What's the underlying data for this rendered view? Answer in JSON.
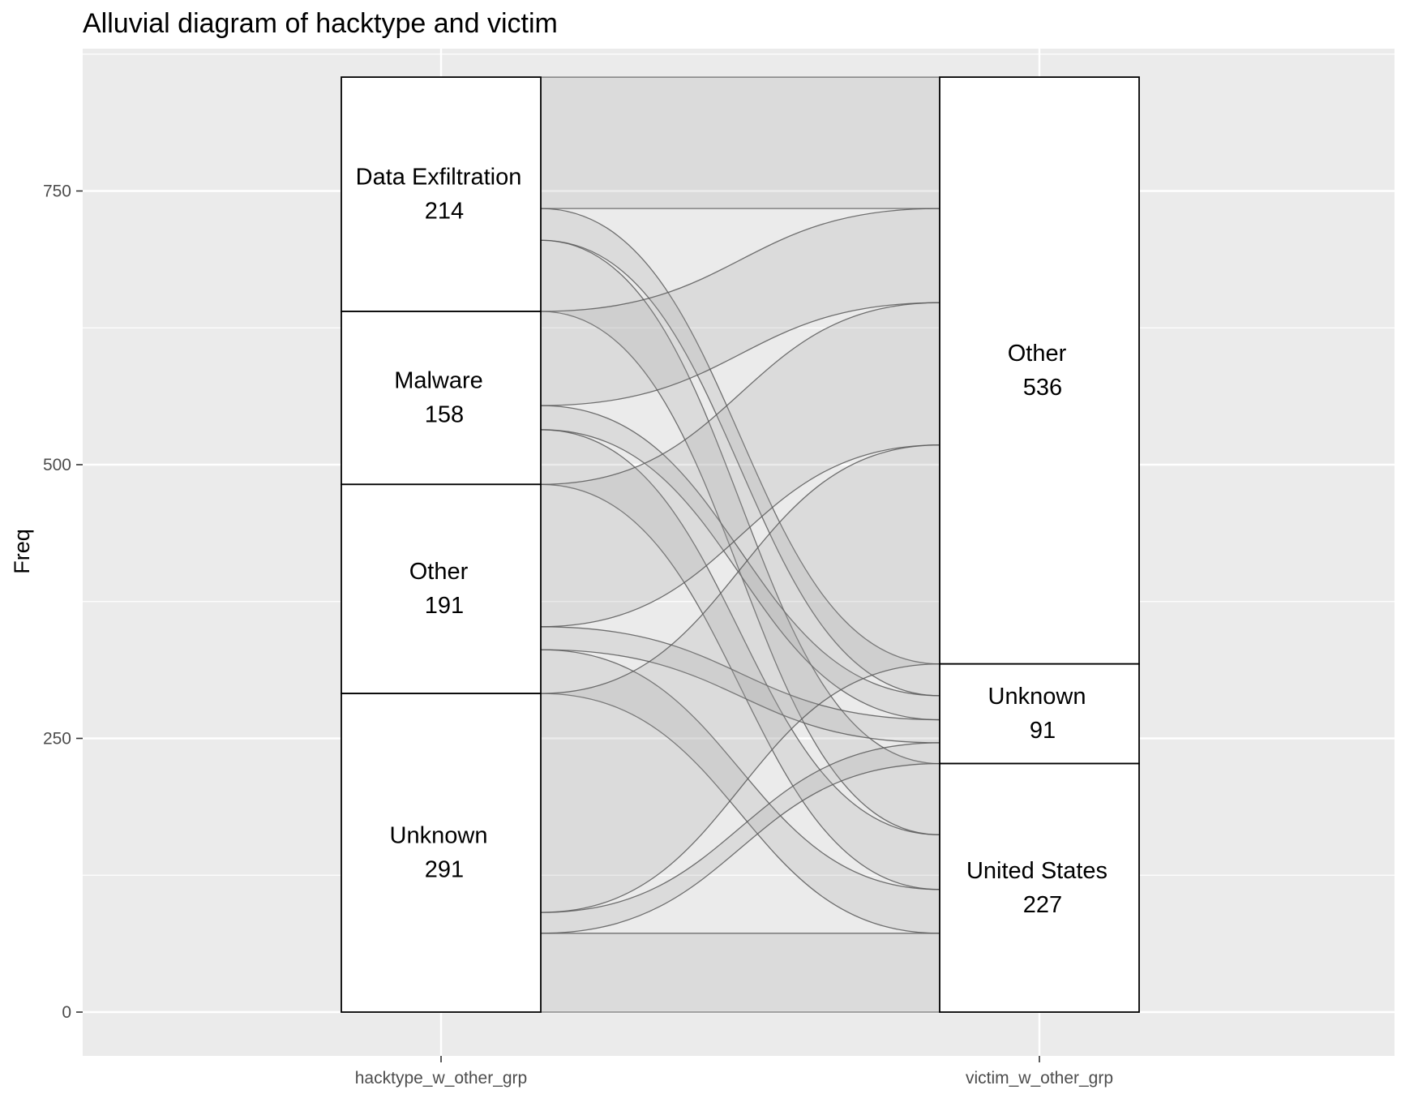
{
  "chart_data": {
    "type": "alluvial",
    "title": "Alluvial diagram of hacktype and victim",
    "ylabel": "Freq",
    "xlabel": "",
    "ylim": [
      -40,
      880
    ],
    "y_ticks": [
      0,
      250,
      500,
      750
    ],
    "y_tick_labels": [
      "0",
      "250",
      "500",
      "750"
    ],
    "grid": true,
    "axes": [
      {
        "name": "hacktype_w_other_grp",
        "strata": [
          {
            "label": "Data Exfiltration",
            "value": 214
          },
          {
            "label": "Malware",
            "value": 158
          },
          {
            "label": "Other",
            "value": 191
          },
          {
            "label": "Unknown",
            "value": 291
          }
        ]
      },
      {
        "name": "victim_w_other_grp",
        "strata": [
          {
            "label": "Other",
            "value": 536
          },
          {
            "label": "Unknown",
            "value": 91
          },
          {
            "label": "United States",
            "value": 227
          }
        ]
      }
    ],
    "flows": [
      {
        "from": "Data Exfiltration",
        "to": "Other",
        "value": 120
      },
      {
        "from": "Data Exfiltration",
        "to": "Unknown",
        "value": 29
      },
      {
        "from": "Data Exfiltration",
        "to": "United States",
        "value": 65
      },
      {
        "from": "Malware",
        "to": "Other",
        "value": 86
      },
      {
        "from": "Malware",
        "to": "Unknown",
        "value": 22
      },
      {
        "from": "Malware",
        "to": "United States",
        "value": 50
      },
      {
        "from": "Other",
        "to": "Other",
        "value": 130
      },
      {
        "from": "Other",
        "to": "Unknown",
        "value": 21
      },
      {
        "from": "Other",
        "to": "United States",
        "value": 40
      },
      {
        "from": "Unknown",
        "to": "Other",
        "value": 200
      },
      {
        "from": "Unknown",
        "to": "Unknown",
        "value": 19
      },
      {
        "from": "Unknown",
        "to": "United States",
        "value": 72
      }
    ],
    "colors": {
      "panel_background": "#ebebeb",
      "grid": "#ffffff",
      "stratum_fill": "#ffffff",
      "stratum_stroke": "#000000",
      "flow_fill": "#a6a6a6",
      "flow_stroke": "#595959"
    }
  }
}
